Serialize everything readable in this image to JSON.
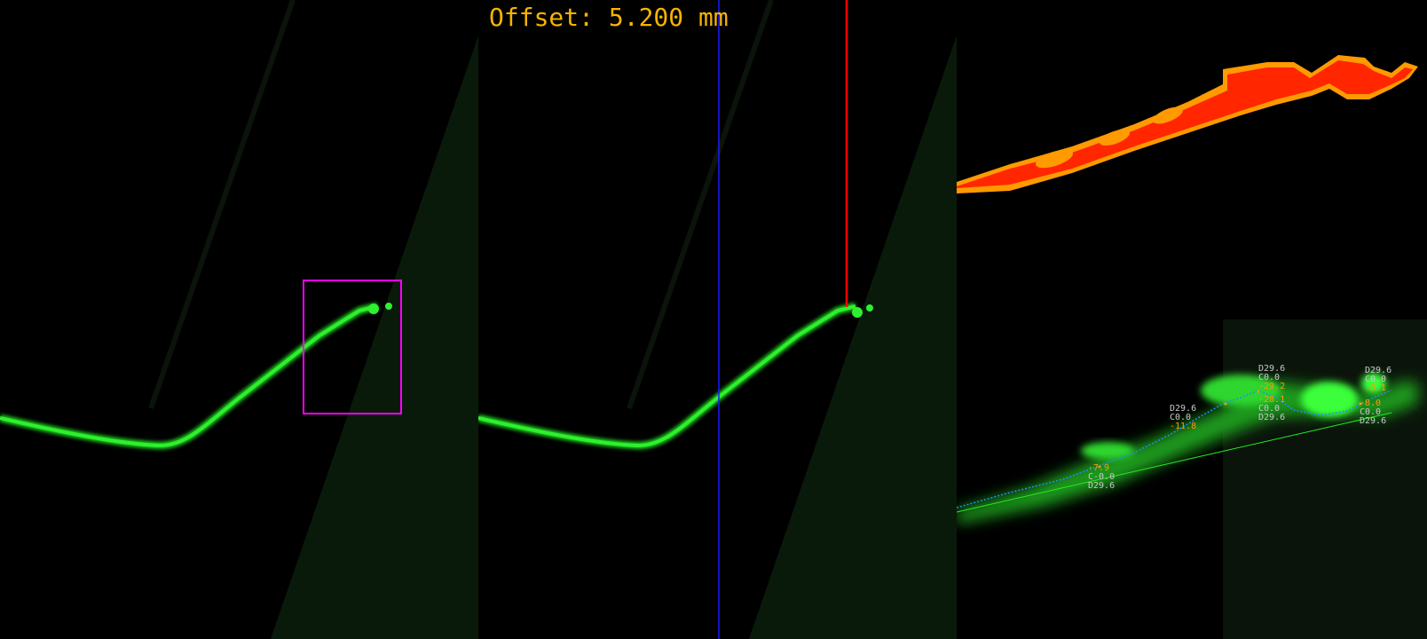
{
  "readout": {
    "offset": "Offset: 5.200 mm"
  },
  "colors": {
    "trace": "#1fd81f",
    "roi_box": "#ff00ff",
    "blue_marker": "#1a1aff",
    "red_marker": "#ff0000",
    "heatmap_core": "#ff1a00",
    "heatmap_edge": "#ff9a00",
    "label_gray": "#c8c8c8",
    "label_orange": "#ff9a00",
    "fit_line": "#22ee22",
    "dotted_path": "#1e90ff"
  },
  "labels": [
    {
      "id": "l1",
      "text": "D29.6",
      "tone": "gray"
    },
    {
      "id": "l2",
      "text": "C0.0",
      "tone": "gray"
    },
    {
      "id": "l3",
      "text": "-11.8",
      "tone": "orange"
    },
    {
      "id": "l4",
      "text": "D29.6",
      "tone": "gray"
    },
    {
      "id": "l5",
      "text": "C0.0",
      "tone": "gray"
    },
    {
      "id": "l6",
      "text": "-29.2",
      "tone": "orange"
    },
    {
      "id": "l7",
      "text": "-28.1",
      "tone": "orange"
    },
    {
      "id": "l8",
      "text": "C0.0",
      "tone": "gray"
    },
    {
      "id": "l9",
      "text": "D29.6",
      "tone": "gray"
    },
    {
      "id": "l10",
      "text": "D29.6",
      "tone": "gray"
    },
    {
      "id": "l11",
      "text": "C0.0",
      "tone": "gray"
    },
    {
      "id": "l12",
      "text": "-8.1",
      "tone": "orange"
    },
    {
      "id": "l13",
      "text": "-8.0",
      "tone": "orange"
    },
    {
      "id": "l14",
      "text": "C0.0",
      "tone": "gray"
    },
    {
      "id": "l15",
      "text": "D29.6",
      "tone": "gray"
    },
    {
      "id": "l16",
      "text": "-7.9",
      "tone": "orange"
    },
    {
      "id": "l17",
      "text": "C-0.0",
      "tone": "gray"
    },
    {
      "id": "l18",
      "text": "D29.6",
      "tone": "gray"
    }
  ]
}
